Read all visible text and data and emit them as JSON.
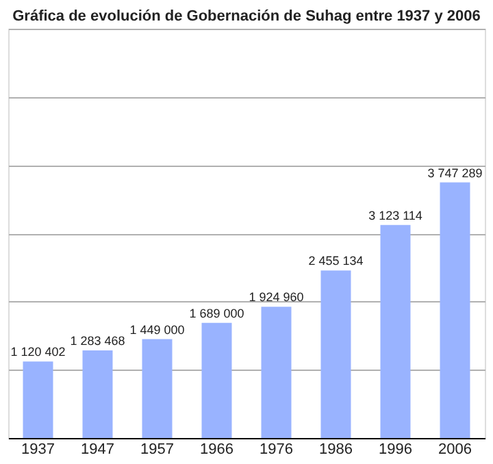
{
  "chart_data": {
    "type": "bar",
    "title": "Gráfica de evolución de Gobernación de Suhag entre 1937 y 2006",
    "categories": [
      "1937",
      "1947",
      "1957",
      "1966",
      "1976",
      "1986",
      "1996",
      "2006"
    ],
    "values": [
      1120402,
      1283468,
      1449000,
      1689000,
      1924960,
      2455134,
      3123114,
      3747289
    ],
    "color": "#99b3ff",
    "data_labels": true,
    "ylim": [
      0,
      6000000
    ],
    "yticks": [
      {
        "value": 0,
        "label": null
      },
      {
        "value": 1000000,
        "label": null
      },
      {
        "value": 2000000,
        "label": null
      },
      {
        "value": 3000000,
        "label": null
      },
      {
        "value": 4000000,
        "label": null
      },
      {
        "value": 5000000,
        "label": null
      },
      {
        "value": 6000000,
        "label": null
      }
    ],
    "grid": "y",
    "tick_labels": "x"
  }
}
